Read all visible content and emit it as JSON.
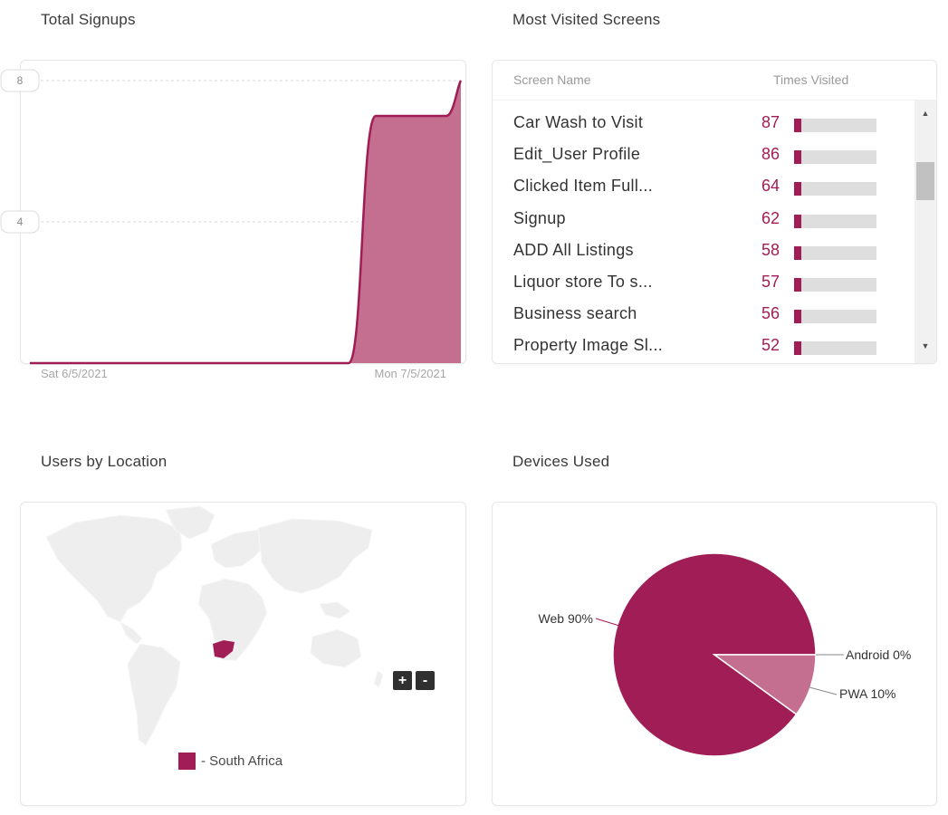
{
  "sections": {
    "signups_title": "Total Signups",
    "screens_title": "Most Visited Screens",
    "location_title": "Users by Location",
    "devices_title": "Devices Used"
  },
  "signups": {
    "y_ticks": [
      "8",
      "4"
    ],
    "x_ticks": [
      "Sat 6/5/2021",
      "Mon 7/5/2021"
    ],
    "accent": "#a01d55",
    "fill": "#c46f90"
  },
  "chart_data": [
    {
      "type": "area",
      "title": "Total Signups",
      "x": [
        "Sat 6/5/2021",
        "",
        "",
        "",
        "",
        "",
        "",
        "Mon 7/5/2021",
        "",
        ""
      ],
      "x_index": [
        0,
        1,
        2,
        3,
        4,
        5,
        6,
        7,
        8,
        9
      ],
      "values": [
        0,
        0,
        0,
        0,
        0,
        0,
        0,
        7,
        7,
        8
      ],
      "ylim": [
        0,
        8
      ],
      "y_ticks": [
        4,
        8
      ],
      "grid": true
    },
    {
      "type": "pie",
      "title": "Devices Used",
      "slices": [
        {
          "label": "Web",
          "value": 90,
          "text": "Web 90%",
          "color": "#a01d55"
        },
        {
          "label": "PWA",
          "value": 10,
          "text": "PWA 10%",
          "color": "#c46f90"
        },
        {
          "label": "Android",
          "value": 0,
          "text": "Android 0%",
          "color": "#d99ab4"
        }
      ]
    }
  ],
  "screens_table": {
    "headers": {
      "name": "Screen Name",
      "visits": "Times Visited"
    },
    "max_value": 1000,
    "rows": [
      {
        "name": "Car Wash to Visit",
        "count": "87",
        "value": 87
      },
      {
        "name": "Edit_User Profile",
        "count": "86",
        "value": 86
      },
      {
        "name": "Clicked Item Full...",
        "count": "64",
        "value": 64
      },
      {
        "name": "Signup",
        "count": "62",
        "value": 62
      },
      {
        "name": "ADD All Listings",
        "count": "58",
        "value": 58
      },
      {
        "name": "Liquor store To s...",
        "count": "57",
        "value": 57
      },
      {
        "name": "Business search",
        "count": "56",
        "value": 56
      },
      {
        "name": "Property Image Sl...",
        "count": "52",
        "value": 52
      }
    ]
  },
  "map": {
    "zoom_in": "+",
    "zoom_out": "-",
    "legend": "- South Africa",
    "highlight_color": "#a01d55",
    "land_color": "#eeeeee"
  }
}
